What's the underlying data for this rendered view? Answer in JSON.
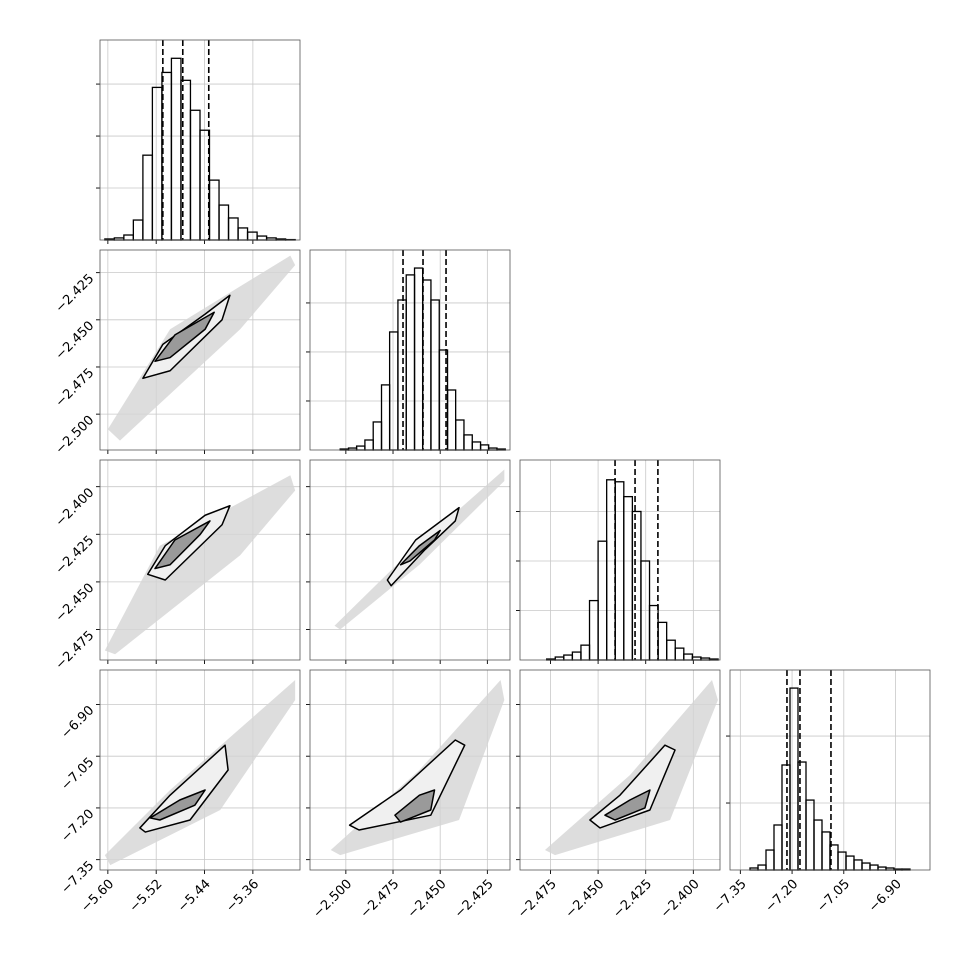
{
  "chart_data": [
    {
      "type": "histogram",
      "xlim": [
        -5.613,
        -5.282
      ],
      "ylim": [
        0,
        962
      ],
      "xticks": [
        -5.6,
        -5.52,
        -5.44,
        -5.36
      ],
      "yticks": [
        250,
        500,
        750
      ],
      "bins": [
        -5.605,
        -5.5893,
        -5.5735,
        -5.5578,
        -5.542,
        -5.5263,
        -5.5105,
        -5.4948,
        -5.479,
        -5.4633,
        -5.4475,
        -5.4318,
        -5.416,
        -5.4003,
        -5.3845,
        -5.3688,
        -5.353,
        -5.3373,
        -5.3215,
        -5.3058,
        -5.29
      ],
      "values": [
        5,
        10,
        24,
        96,
        408,
        734,
        806,
        874,
        768,
        624,
        528,
        288,
        168,
        106,
        58,
        38,
        19,
        10,
        5,
        2
      ],
      "quantiles": [
        -5.509,
        -5.476,
        -5.433
      ],
      "color": "#000000"
    },
    {
      "type": "contour",
      "xlim": [
        -5.613,
        -5.282
      ],
      "ylim": [
        -2.519,
        -2.413
      ],
      "xticks": [
        -5.6,
        -5.52,
        -5.44,
        -5.36
      ],
      "yticks": [
        {
          "value": -2.5,
          "label": "−2.500"
        },
        {
          "value": -2.475,
          "label": "−2.475"
        },
        {
          "value": -2.45,
          "label": "−2.450"
        },
        {
          "value": -2.425,
          "label": "−2.425"
        }
      ],
      "contour_colors": [
        "#d4d4d4",
        "#f0f0f0",
        "#9a9a9a"
      ],
      "contours": [
        {
          "x": [
            -5.6,
            -5.497,
            -5.298,
            -5.29,
            -5.381,
            -5.58
          ],
          "y": [
            -2.508,
            -2.455,
            -2.416,
            -2.421,
            -2.455,
            -2.514
          ]
        },
        {
          "x": [
            -5.542,
            -5.509,
            -5.439,
            -5.398,
            -5.411,
            -5.497
          ],
          "y": [
            -2.481,
            -2.463,
            -2.447,
            -2.437,
            -2.45,
            -2.477
          ]
        },
        {
          "x": [
            -5.522,
            -5.489,
            -5.424,
            -5.439,
            -5.497
          ],
          "y": [
            -2.472,
            -2.458,
            -2.446,
            -2.455,
            -2.47
          ]
        }
      ]
    },
    {
      "type": "histogram",
      "xlim": [
        -2.519,
        -2.413
      ],
      "ylim": [
        0,
        1020
      ],
      "xticks": [
        -2.5,
        -2.475,
        -2.45,
        -2.425
      ],
      "yticks": [
        250,
        500,
        750
      ],
      "bins": [
        -2.503,
        -2.4986,
        -2.4943,
        -2.4899,
        -2.4855,
        -2.4811,
        -2.4768,
        -2.4724,
        -2.468,
        -2.4636,
        -2.4593,
        -2.4549,
        -2.4505,
        -2.4461,
        -2.4418,
        -2.4374,
        -2.433,
        -2.4286,
        -2.4243,
        -2.4199,
        -2.4155
      ],
      "values": [
        5,
        10,
        20,
        51,
        143,
        332,
        602,
        765,
        893,
        928,
        867,
        765,
        510,
        306,
        153,
        77,
        41,
        26,
        10,
        5
      ],
      "quantiles": [
        -2.4697,
        -2.4591,
        -2.4469
      ],
      "color": "#000000"
    },
    {
      "type": "contour",
      "xlim": [
        -5.613,
        -5.282
      ],
      "ylim": [
        -2.491,
        -2.386
      ],
      "xticks": [
        -5.6,
        -5.52,
        -5.44,
        -5.36
      ],
      "yticks": [
        {
          "value": -2.475,
          "label": "−2.475"
        },
        {
          "value": -2.45,
          "label": "−2.450"
        },
        {
          "value": -2.425,
          "label": "−2.425"
        },
        {
          "value": -2.4,
          "label": "−2.400"
        }
      ],
      "contour_colors": [
        "#d4d4d4",
        "#f0f0f0",
        "#9a9a9a"
      ],
      "contours": [
        {
          "x": [
            -5.605,
            -5.514,
            -5.298,
            -5.29,
            -5.381,
            -5.588
          ],
          "y": [
            -2.486,
            -2.431,
            -2.394,
            -2.402,
            -2.436,
            -2.488
          ]
        },
        {
          "x": [
            -5.534,
            -5.505,
            -5.439,
            -5.398,
            -5.411,
            -5.505
          ],
          "y": [
            -2.446,
            -2.431,
            -2.415,
            -2.41,
            -2.42,
            -2.449
          ]
        },
        {
          "x": [
            -5.522,
            -5.489,
            -5.431,
            -5.447,
            -5.497
          ],
          "y": [
            -2.443,
            -2.428,
            -2.418,
            -2.425,
            -2.441
          ]
        }
      ]
    },
    {
      "type": "contour",
      "xlim": [
        -2.519,
        -2.413
      ],
      "ylim": [
        -2.491,
        -2.386
      ],
      "xticks": [
        -2.5,
        -2.475,
        -2.45,
        -2.425
      ],
      "yticks": [
        -2.475,
        -2.45,
        -2.425,
        -2.4
      ],
      "contour_colors": [
        "#d4d4d4",
        "#f0f0f0",
        "#9a9a9a"
      ],
      "contours": [
        {
          "x": [
            -2.506,
            -2.471,
            -2.416,
            -2.416,
            -2.461,
            -2.503
          ],
          "y": [
            -2.473,
            -2.439,
            -2.391,
            -2.397,
            -2.441,
            -2.475
          ]
        },
        {
          "x": [
            -2.478,
            -2.463,
            -2.44,
            -2.442,
            -2.458,
            -2.476
          ],
          "y": [
            -2.449,
            -2.428,
            -2.411,
            -2.418,
            -2.433,
            -2.452
          ]
        },
        {
          "x": [
            -2.471,
            -2.461,
            -2.45,
            -2.453,
            -2.466
          ],
          "y": [
            -2.441,
            -2.431,
            -2.423,
            -2.428,
            -2.439
          ]
        }
      ]
    },
    {
      "type": "histogram",
      "xlim": [
        -2.491,
        -2.386
      ],
      "ylim": [
        0,
        1010
      ],
      "xticks": [
        -2.475,
        -2.45,
        -2.425,
        -2.4
      ],
      "yticks": [
        250,
        500,
        750
      ],
      "bins": [
        -2.477,
        -2.4725,
        -2.468,
        -2.4635,
        -2.459,
        -2.4545,
        -2.45,
        -2.4455,
        -2.441,
        -2.4365,
        -2.432,
        -2.4275,
        -2.423,
        -2.4185,
        -2.414,
        -2.4095,
        -2.405,
        -2.4005,
        -2.396,
        -2.3915,
        -2.387
      ],
      "values": [
        5,
        15,
        25,
        40,
        75,
        300,
        600,
        910,
        900,
        825,
        750,
        500,
        275,
        190,
        100,
        60,
        30,
        15,
        10,
        5
      ],
      "quantiles": [
        -2.4411,
        -2.4306,
        -2.4186
      ],
      "color": "#000000"
    },
    {
      "type": "contour",
      "xlim": [
        -5.613,
        -5.282
      ],
      "ylim": [
        -7.38,
        -6.8
      ],
      "xticks": [
        {
          "value": -5.6,
          "label": "−5.60"
        },
        {
          "value": -5.52,
          "label": "−5.52"
        },
        {
          "value": -5.44,
          "label": "−5.44"
        },
        {
          "value": -5.36,
          "label": "−5.36"
        }
      ],
      "yticks": [
        {
          "value": -7.35,
          "label": "−7.35"
        },
        {
          "value": -7.2,
          "label": "−7.20"
        },
        {
          "value": -7.05,
          "label": "−7.05"
        },
        {
          "value": -6.9,
          "label": "−6.90"
        }
      ],
      "contour_colors": [
        "#d4d4d4",
        "#f0f0f0",
        "#9a9a9a"
      ],
      "contours": [
        {
          "x": [
            -5.605,
            -5.497,
            -5.29,
            -5.29,
            -5.414,
            -5.596
          ],
          "y": [
            -7.337,
            -7.148,
            -6.829,
            -6.887,
            -7.206,
            -7.366
          ]
        },
        {
          "x": [
            -5.547,
            -5.497,
            -5.406,
            -5.401,
            -5.464,
            -5.538
          ],
          "y": [
            -7.258,
            -7.163,
            -7.018,
            -7.09,
            -7.235,
            -7.27
          ]
        },
        {
          "x": [
            -5.53,
            -5.481,
            -5.439,
            -5.456,
            -5.514
          ],
          "y": [
            -7.229,
            -7.177,
            -7.148,
            -7.192,
            -7.235
          ]
        }
      ]
    },
    {
      "type": "contour",
      "xlim": [
        -2.519,
        -2.413
      ],
      "ylim": [
        -7.38,
        -6.8
      ],
      "xticks": [
        {
          "value": -2.5,
          "label": "−2.500"
        },
        {
          "value": -2.475,
          "label": "−2.475"
        },
        {
          "value": -2.45,
          "label": "−2.450"
        },
        {
          "value": -2.425,
          "label": "−2.425"
        }
      ],
      "yticks": [
        -7.35,
        -7.2,
        -7.05,
        -6.9
      ],
      "contour_colors": [
        "#d4d4d4",
        "#f0f0f0",
        "#9a9a9a"
      ],
      "contours": [
        {
          "x": [
            -2.508,
            -2.461,
            -2.418,
            -2.416,
            -2.44,
            -2.503
          ],
          "y": [
            -7.322,
            -7.09,
            -6.829,
            -6.887,
            -7.235,
            -7.337
          ]
        },
        {
          "x": [
            -2.498,
            -2.471,
            -2.442,
            -2.437,
            -2.455,
            -2.493
          ],
          "y": [
            -7.25,
            -7.148,
            -7.003,
            -7.018,
            -7.221,
            -7.264
          ]
        },
        {
          "x": [
            -2.474,
            -2.461,
            -2.453,
            -2.455,
            -2.471
          ],
          "y": [
            -7.221,
            -7.163,
            -7.148,
            -7.206,
            -7.241
          ]
        }
      ]
    },
    {
      "type": "contour",
      "xlim": [
        -2.491,
        -2.386
      ],
      "ylim": [
        -7.38,
        -6.8
      ],
      "xticks": [
        {
          "value": -2.475,
          "label": "−2.475"
        },
        {
          "value": -2.45,
          "label": "−2.450"
        },
        {
          "value": -2.425,
          "label": "−2.425"
        },
        {
          "value": -2.4,
          "label": "−2.400"
        }
      ],
      "yticks": [
        -7.35,
        -7.2,
        -7.05,
        -6.9
      ],
      "contour_colors": [
        "#d4d4d4",
        "#f0f0f0",
        "#9a9a9a"
      ],
      "contours": [
        {
          "x": [
            -2.4779,
            -2.4333,
            -2.3902,
            -2.3871,
            -2.4122,
            -2.4726
          ],
          "y": [
            -7.322,
            -7.105,
            -6.829,
            -6.887,
            -7.235,
            -7.337
          ]
        },
        {
          "x": [
            -2.4543,
            -2.4385,
            -2.4149,
            -2.4096,
            -2.4228,
            -2.449
          ],
          "y": [
            -7.235,
            -7.163,
            -7.018,
            -7.032,
            -7.206,
            -7.258
          ]
        },
        {
          "x": [
            -2.4464,
            -2.4333,
            -2.4228,
            -2.4254,
            -2.4411
          ],
          "y": [
            -7.221,
            -7.177,
            -7.148,
            -7.2,
            -7.235
          ]
        }
      ]
    },
    {
      "type": "histogram",
      "xlim": [
        -7.38,
        -6.8
      ],
      "ylim": [
        0,
        1493
      ],
      "xticks": [
        {
          "value": -7.35,
          "label": "−7.35"
        },
        {
          "value": -7.2,
          "label": "−7.20"
        },
        {
          "value": -7.05,
          "label": "−7.05"
        },
        {
          "value": -6.9,
          "label": "−6.90"
        }
      ],
      "yticks": [
        500,
        1000
      ],
      "bins": [
        -7.322,
        -7.2988,
        -7.2756,
        -7.2524,
        -7.2292,
        -7.206,
        -7.1828,
        -7.1596,
        -7.1364,
        -7.1132,
        -7.09,
        -7.0668,
        -7.0436,
        -7.0204,
        -6.9972,
        -6.974,
        -6.9508,
        -6.9276,
        -6.9044,
        -6.8812,
        -6.858
      ],
      "values": [
        15,
        37,
        149,
        336,
        784,
        1358,
        806,
        522,
        373,
        284,
        187,
        134,
        104,
        75,
        52,
        37,
        22,
        15,
        7,
        7
      ],
      "quantiles": [
        -7.2148,
        -7.1771,
        -7.0872
      ],
      "color": "#000000"
    }
  ]
}
